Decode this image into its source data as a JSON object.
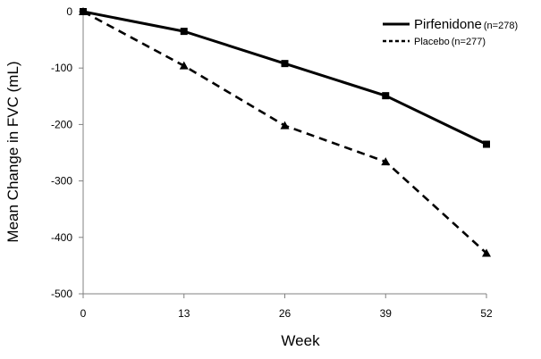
{
  "chart_data": {
    "type": "line",
    "title": "",
    "xlabel": "Week",
    "ylabel": "Mean Change in FVC (mL)",
    "x": [
      0,
      13,
      26,
      39,
      52
    ],
    "xticks": [
      "0",
      "13",
      "26",
      "39",
      "52"
    ],
    "yticks": [
      "0",
      "-100",
      "-200",
      "-300",
      "-400",
      "-500"
    ],
    "xlim": [
      0,
      52
    ],
    "ylim": [
      -500,
      0
    ],
    "grid": false,
    "legend_position": "top-right",
    "series": [
      {
        "name": "Pirfenidone",
        "n_label": "(n=278)",
        "values": [
          0,
          -35,
          -92,
          -149,
          -235
        ],
        "marker": "square",
        "line_style": "solid",
        "color": "#000000"
      },
      {
        "name": "Placebo",
        "n_label": "(n=277)",
        "values": [
          0,
          -96,
          -202,
          -266,
          -428
        ],
        "marker": "triangle",
        "line_style": "dashed",
        "color": "#000000"
      }
    ]
  }
}
